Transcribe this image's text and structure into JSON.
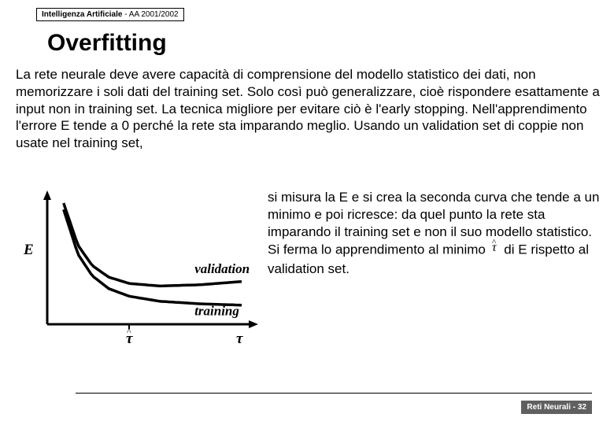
{
  "header": {
    "course": "Intelligenza Artificiale",
    "sep": " - ",
    "year": "AA 2001/2002"
  },
  "title": "Overfitting",
  "paragraph_top": "La rete neurale deve avere capacità di comprensione del modello statistico dei dati, non memorizzare i soli dati del training set. Solo così può generalizzare, cioè rispondere esattamente a input non in training set. La tecnica migliore per evitare ciò è l'early stopping. Nell'apprendimento l'errore E tende a 0 perché la rete sta imparando meglio. Usando un validation set di coppie non usate nel training set,",
  "paragraph_right_a": "si misura la E e si crea la seconda curva che tende a un minimo e poi ricresce: da quel punto la rete sta imparando il training set e non il suo modello statistico. Si ferma lo apprendimento al minimo ",
  "paragraph_right_b": " di E rispetto al validation set.",
  "footer": {
    "section": "Reti Neurali",
    "sep": " - ",
    "page": "32"
  },
  "chart": {
    "axis_color": "#000000",
    "axis_width": 3,
    "curve_width": 3.5,
    "curve_color": "#000000",
    "label_validation": "validation",
    "label_training": "training",
    "ylabel": "E",
    "xlabel_tau_hat": "τ̂",
    "xlabel_tau": "τ",
    "label_fontsize": 17,
    "label_font": "italic bold 18px serif",
    "training": {
      "comment": "decreasing curve approaching asymptote",
      "points_x": [
        0.08,
        0.15,
        0.22,
        0.3,
        0.4,
        0.55,
        0.75,
        0.95
      ],
      "points_y": [
        0.9,
        0.55,
        0.38,
        0.28,
        0.22,
        0.18,
        0.16,
        0.15
      ]
    },
    "validation": {
      "comment": "curve that dips then rises",
      "points_x": [
        0.08,
        0.15,
        0.22,
        0.3,
        0.4,
        0.55,
        0.75,
        0.95
      ],
      "points_y": [
        0.95,
        0.62,
        0.46,
        0.37,
        0.32,
        0.3,
        0.31,
        0.335
      ]
    },
    "tau_hat_x": 0.4
  }
}
